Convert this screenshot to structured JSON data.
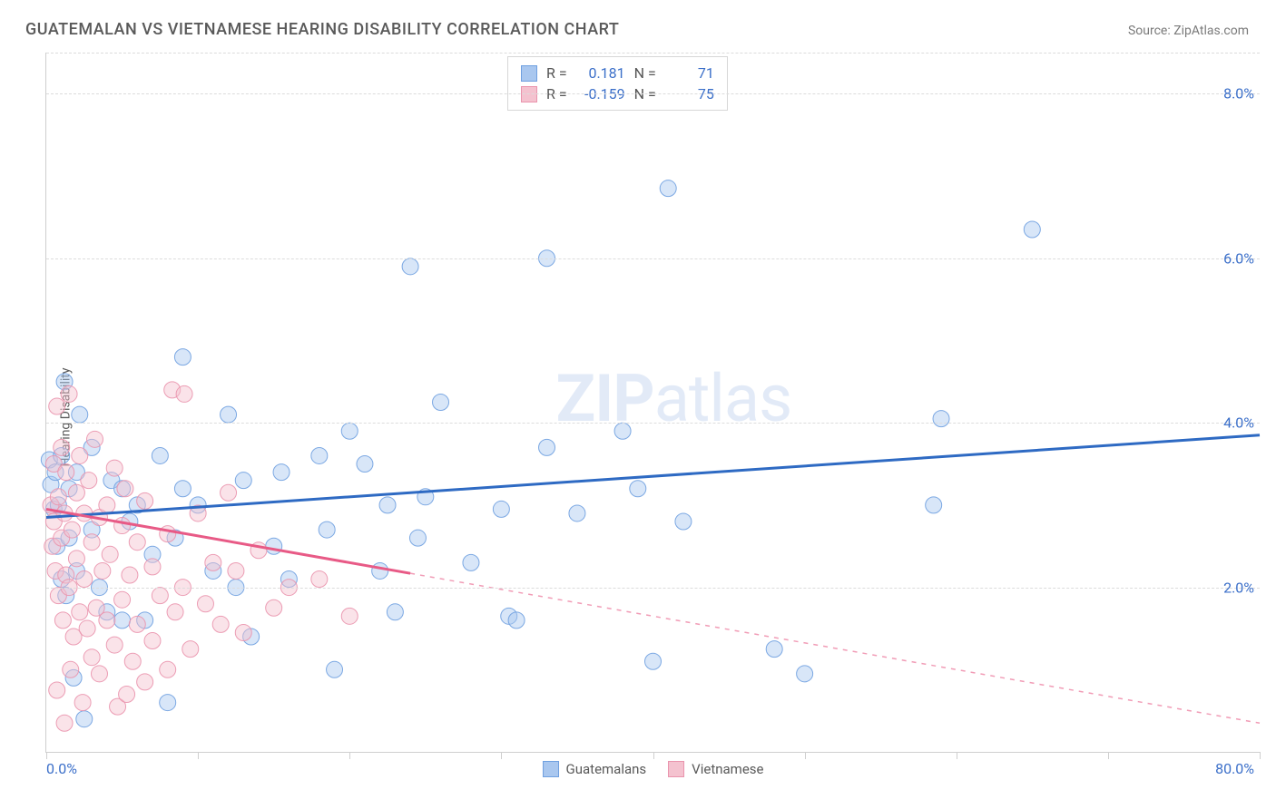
{
  "title": "GUATEMALAN VS VIETNAMESE HEARING DISABILITY CORRELATION CHART",
  "source": "Source: ZipAtlas.com",
  "watermark_bold": "ZIP",
  "watermark_rest": "atlas",
  "chart": {
    "type": "scatter",
    "ylabel": "Hearing Disability",
    "xlim": [
      0.0,
      80.0
    ],
    "ylim": [
      0.0,
      8.5
    ],
    "xticks": [
      0,
      10,
      20,
      30,
      40,
      50,
      60,
      70,
      80
    ],
    "xmin_label": "0.0%",
    "xmax_label": "80.0%",
    "yticks": [
      2.0,
      4.0,
      6.0,
      8.0
    ],
    "ytick_labels": [
      "2.0%",
      "4.0%",
      "6.0%",
      "8.0%"
    ],
    "grid_color": "#dcdcdc",
    "background_color": "#ffffff",
    "axis_color": "#cfcfcf",
    "tick_label_color": "#3b6fc9",
    "tick_fontsize": 16,
    "ylabel_fontsize": 14,
    "ylabel_color": "#5a5a5a",
    "marker_radius": 9,
    "marker_opacity": 0.45,
    "marker_stroke_opacity": 0.9,
    "trend_line_width": 3,
    "series": [
      {
        "name": "Guatemalans",
        "fill": "#a9c7ef",
        "stroke": "#6fa0e0",
        "line_color": "#2e6ac3",
        "R": "0.181",
        "N": "71",
        "trend": {
          "x1": 0,
          "y1": 2.85,
          "x2": 80,
          "y2": 3.85,
          "dash_after_x": 80
        },
        "points": [
          [
            0.2,
            3.55
          ],
          [
            0.3,
            3.25
          ],
          [
            0.5,
            2.95
          ],
          [
            0.6,
            3.4
          ],
          [
            0.7,
            2.5
          ],
          [
            0.8,
            3.0
          ],
          [
            1.0,
            3.6
          ],
          [
            1.0,
            2.1
          ],
          [
            1.2,
            4.5
          ],
          [
            1.3,
            1.9
          ],
          [
            1.5,
            3.2
          ],
          [
            1.5,
            2.6
          ],
          [
            1.8,
            0.9
          ],
          [
            2.0,
            3.4
          ],
          [
            2.0,
            2.2
          ],
          [
            2.2,
            4.1
          ],
          [
            2.5,
            0.4
          ],
          [
            3.0,
            2.7
          ],
          [
            3.0,
            3.7
          ],
          [
            3.5,
            2.0
          ],
          [
            4.0,
            1.7
          ],
          [
            4.3,
            3.3
          ],
          [
            5.0,
            3.2
          ],
          [
            5.0,
            1.6
          ],
          [
            5.5,
            2.8
          ],
          [
            6.0,
            3.0
          ],
          [
            6.5,
            1.6
          ],
          [
            7.0,
            2.4
          ],
          [
            7.5,
            3.6
          ],
          [
            8.0,
            0.6
          ],
          [
            8.5,
            2.6
          ],
          [
            9.0,
            3.2
          ],
          [
            9.0,
            4.8
          ],
          [
            10.0,
            3.0
          ],
          [
            11.0,
            2.2
          ],
          [
            12.0,
            4.1
          ],
          [
            12.5,
            2.0
          ],
          [
            13.0,
            3.3
          ],
          [
            13.5,
            1.4
          ],
          [
            15.0,
            2.5
          ],
          [
            15.5,
            3.4
          ],
          [
            16.0,
            2.1
          ],
          [
            18.0,
            3.6
          ],
          [
            18.5,
            2.7
          ],
          [
            19.0,
            1.0
          ],
          [
            20.0,
            3.9
          ],
          [
            21.0,
            3.5
          ],
          [
            22.0,
            2.2
          ],
          [
            22.5,
            3.0
          ],
          [
            23.0,
            1.7
          ],
          [
            24.0,
            5.9
          ],
          [
            24.5,
            2.6
          ],
          [
            25.0,
            3.1
          ],
          [
            26.0,
            4.25
          ],
          [
            28.0,
            2.3
          ],
          [
            30.0,
            2.95
          ],
          [
            30.5,
            1.65
          ],
          [
            31.0,
            1.6
          ],
          [
            33.0,
            3.7
          ],
          [
            33.0,
            6.0
          ],
          [
            35.0,
            2.9
          ],
          [
            38.0,
            3.9
          ],
          [
            39.0,
            3.2
          ],
          [
            40.0,
            1.1
          ],
          [
            41.0,
            6.85
          ],
          [
            42.0,
            2.8
          ],
          [
            48.0,
            1.25
          ],
          [
            50.0,
            0.95
          ],
          [
            58.5,
            3.0
          ],
          [
            59.0,
            4.05
          ],
          [
            65.0,
            6.35
          ]
        ]
      },
      {
        "name": "Vietnamese",
        "fill": "#f4c2cf",
        "stroke": "#ea94ad",
        "line_color": "#e85a86",
        "R": "-0.159",
        "N": "75",
        "trend": {
          "x1": 0,
          "y1": 2.95,
          "x2": 80,
          "y2": 0.35,
          "dash_after_x": 24
        },
        "points": [
          [
            0.3,
            3.0
          ],
          [
            0.4,
            2.5
          ],
          [
            0.5,
            2.8
          ],
          [
            0.5,
            3.5
          ],
          [
            0.6,
            2.2
          ],
          [
            0.7,
            4.2
          ],
          [
            0.7,
            0.75
          ],
          [
            0.8,
            1.9
          ],
          [
            0.8,
            3.1
          ],
          [
            1.0,
            2.6
          ],
          [
            1.0,
            3.7
          ],
          [
            1.1,
            1.6
          ],
          [
            1.2,
            2.9
          ],
          [
            1.2,
            0.35
          ],
          [
            1.3,
            3.4
          ],
          [
            1.3,
            2.15
          ],
          [
            1.5,
            2.0
          ],
          [
            1.5,
            4.35
          ],
          [
            1.6,
            1.0
          ],
          [
            1.7,
            2.7
          ],
          [
            1.8,
            1.4
          ],
          [
            2.0,
            3.15
          ],
          [
            2.0,
            2.35
          ],
          [
            2.2,
            1.7
          ],
          [
            2.2,
            3.6
          ],
          [
            2.4,
            0.6
          ],
          [
            2.5,
            2.9
          ],
          [
            2.5,
            2.1
          ],
          [
            2.7,
            1.5
          ],
          [
            2.8,
            3.3
          ],
          [
            3.0,
            1.15
          ],
          [
            3.0,
            2.55
          ],
          [
            3.2,
            3.8
          ],
          [
            3.3,
            1.75
          ],
          [
            3.5,
            2.85
          ],
          [
            3.5,
            0.95
          ],
          [
            3.7,
            2.2
          ],
          [
            4.0,
            1.6
          ],
          [
            4.0,
            3.0
          ],
          [
            4.2,
            2.4
          ],
          [
            4.5,
            1.3
          ],
          [
            4.5,
            3.45
          ],
          [
            4.7,
            0.55
          ],
          [
            5.0,
            2.75
          ],
          [
            5.0,
            1.85
          ],
          [
            5.2,
            3.2
          ],
          [
            5.3,
            0.7
          ],
          [
            5.5,
            2.15
          ],
          [
            5.7,
            1.1
          ],
          [
            6.0,
            2.55
          ],
          [
            6.0,
            1.55
          ],
          [
            6.5,
            3.05
          ],
          [
            6.5,
            0.85
          ],
          [
            7.0,
            2.25
          ],
          [
            7.0,
            1.35
          ],
          [
            7.5,
            1.9
          ],
          [
            8.0,
            2.65
          ],
          [
            8.0,
            1.0
          ],
          [
            8.3,
            4.4
          ],
          [
            8.5,
            1.7
          ],
          [
            9.0,
            2.0
          ],
          [
            9.1,
            4.35
          ],
          [
            9.5,
            1.25
          ],
          [
            10.0,
            2.9
          ],
          [
            10.5,
            1.8
          ],
          [
            11.0,
            2.3
          ],
          [
            11.5,
            1.55
          ],
          [
            12.0,
            3.15
          ],
          [
            12.5,
            2.2
          ],
          [
            13.0,
            1.45
          ],
          [
            14.0,
            2.45
          ],
          [
            15.0,
            1.75
          ],
          [
            16.0,
            2.0
          ],
          [
            18.0,
            2.1
          ],
          [
            20.0,
            1.65
          ]
        ]
      }
    ],
    "bottom_legend": [
      {
        "label": "Guatemalans",
        "fill": "#a9c7ef",
        "stroke": "#6fa0e0"
      },
      {
        "label": "Vietnamese",
        "fill": "#f4c2cf",
        "stroke": "#ea94ad"
      }
    ]
  }
}
